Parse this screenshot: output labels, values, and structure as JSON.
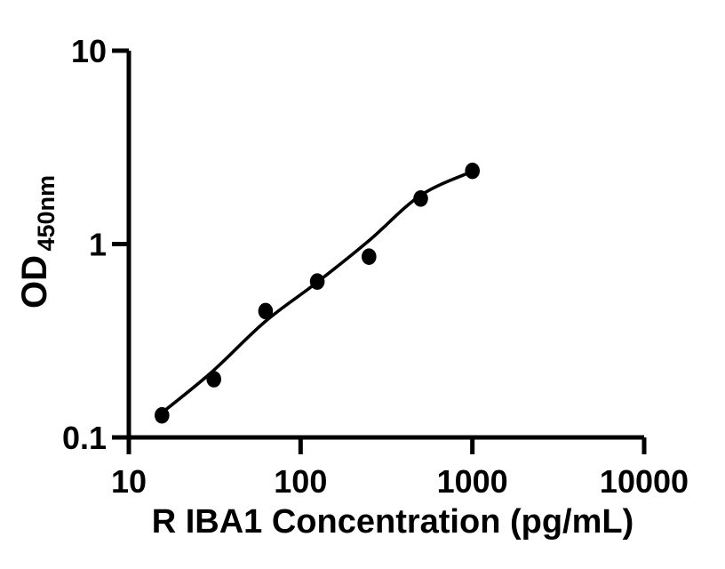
{
  "chart_data": {
    "type": "scatter",
    "title": "",
    "xlabel": "R IBA1 Concentration (pg/mL)",
    "ylabel": "OD",
    "ylabel_subscript": "450nm",
    "x_scale": "log",
    "y_scale": "log",
    "xlim": [
      10,
      10000
    ],
    "ylim": [
      0.1,
      10
    ],
    "x_ticks": [
      10,
      100,
      1000,
      10000
    ],
    "x_tick_labels": [
      "10",
      "100",
      "1000",
      "10000"
    ],
    "y_ticks": [
      10,
      1,
      0.1
    ],
    "y_tick_labels": [
      "10",
      "1",
      "0.1"
    ],
    "grid": false,
    "legend": null,
    "series": [
      {
        "name": "standard-points",
        "type": "scatter",
        "marker": "filled-circle",
        "color": "#000000",
        "points": [
          [
            15.6,
            0.13
          ],
          [
            31.25,
            0.2
          ],
          [
            62.5,
            0.45
          ],
          [
            125,
            0.64
          ],
          [
            250,
            0.86
          ],
          [
            500,
            1.72
          ],
          [
            1000,
            2.39
          ]
        ]
      },
      {
        "name": "fitted-curve",
        "type": "line",
        "color": "#000000",
        "points": [
          [
            15.9,
            0.136
          ],
          [
            30.6,
            0.219
          ],
          [
            61.9,
            0.396
          ],
          [
            122,
            0.624
          ],
          [
            249,
            1.038
          ],
          [
            497,
            1.781
          ],
          [
            992,
            2.369
          ]
        ]
      }
    ]
  },
  "colors": {
    "foreground": "#000000",
    "background": "#ffffff"
  }
}
